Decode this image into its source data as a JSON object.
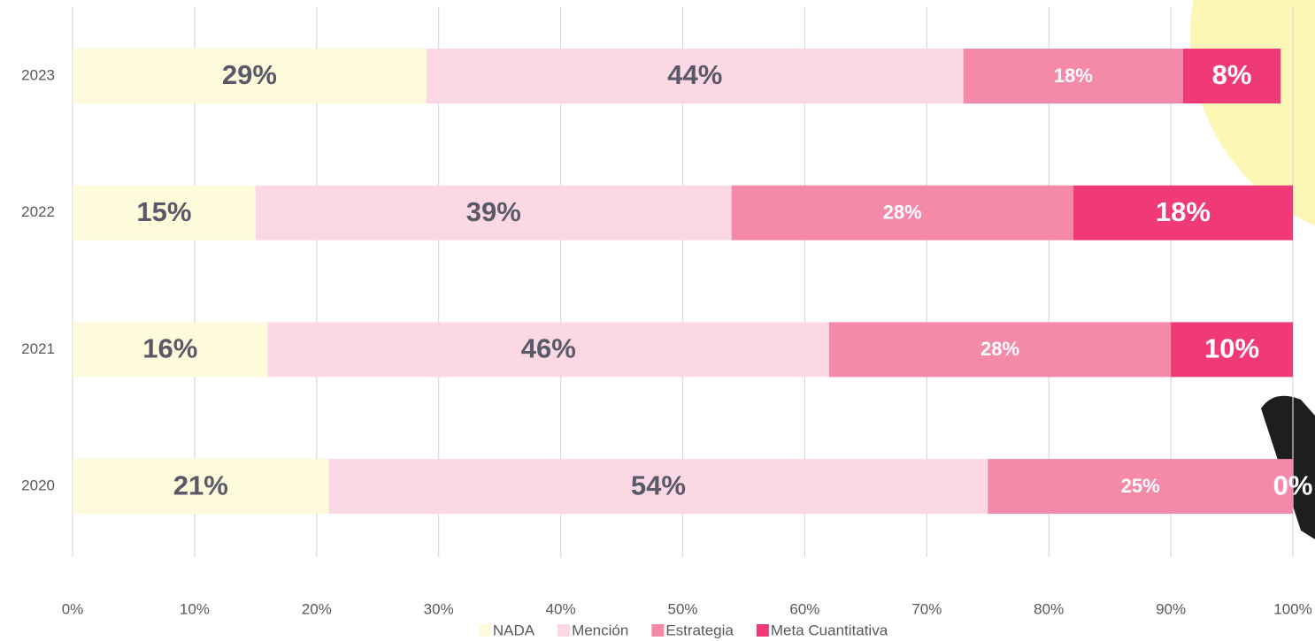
{
  "chart_data": {
    "type": "stacked-bar-horizontal",
    "categories": [
      "2023",
      "2022",
      "2021",
      "2020"
    ],
    "series": [
      {
        "name": "NADA",
        "color": "#fefadc",
        "values": [
          29,
          15,
          16,
          21
        ],
        "value_labels": [
          "29%",
          "15%",
          "16%",
          "21%"
        ]
      },
      {
        "name": "Mención",
        "color": "#fcd8e4",
        "values": [
          44,
          39,
          46,
          54
        ],
        "value_labels": [
          "44%",
          "39%",
          "46%",
          "54%"
        ]
      },
      {
        "name": "Estrategia",
        "color": "#f589aa",
        "values": [
          18,
          28,
          28,
          25
        ],
        "value_labels": [
          "18%",
          "28%",
          "28%",
          "25%"
        ]
      },
      {
        "name": "Meta Cuantitativa",
        "color": "#ef3a77",
        "values": [
          8,
          18,
          10,
          0
        ],
        "value_labels": [
          "8%",
          "18%",
          "10%",
          "0%"
        ]
      }
    ],
    "xlim": [
      0,
      100
    ],
    "xticks": [
      {
        "value": 0,
        "label": "0%"
      },
      {
        "value": 10,
        "label": "10%"
      },
      {
        "value": 20,
        "label": "20%"
      },
      {
        "value": 30,
        "label": "30%"
      },
      {
        "value": 40,
        "label": "40%"
      },
      {
        "value": 50,
        "label": "50%"
      },
      {
        "value": 60,
        "label": "60%"
      },
      {
        "value": 70,
        "label": "70%"
      },
      {
        "value": 80,
        "label": "80%"
      },
      {
        "value": 90,
        "label": "90%"
      },
      {
        "value": 100,
        "label": "100%"
      }
    ],
    "grid": true,
    "legend": "bottom"
  }
}
